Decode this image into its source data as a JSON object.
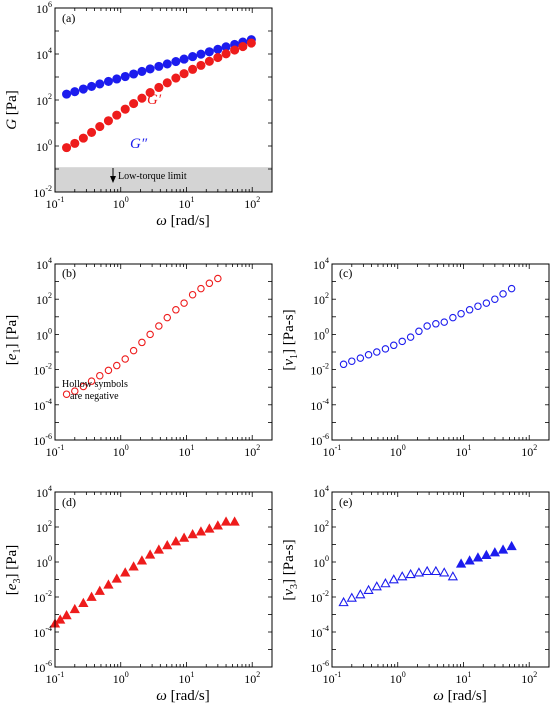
{
  "figure": {
    "panels": [
      {
        "id": "a",
        "label": "(a)",
        "ylabel_sym": "G",
        "ylabel_unit": " [Pa]",
        "xlabel_sym": "ω",
        "xlabel_unit": " [rad/s]"
      },
      {
        "id": "b",
        "label": "(b)",
        "ylabel_sym": "e",
        "ylabel_sub": "1",
        "ylabel_unit": " [Pa]",
        "annotation": [
          "Hollow symbols",
          "are negative"
        ]
      },
      {
        "id": "c",
        "label": "(c)",
        "ylabel_sym": "v",
        "ylabel_sub": "1",
        "ylabel_unit": " [Pa-s]"
      },
      {
        "id": "d",
        "label": "(d)",
        "ylabel_sym": "e",
        "ylabel_sub": "3",
        "ylabel_unit": " [Pa]",
        "xlabel_sym": "ω",
        "xlabel_unit": " [rad/s]"
      },
      {
        "id": "e",
        "label": "(e)",
        "ylabel_sym": "v",
        "ylabel_sub": "3",
        "ylabel_unit": " [Pa-s]",
        "xlabel_sym": "ω",
        "xlabel_unit": " [rad/s]"
      }
    ],
    "colors": {
      "red": "#ee1c1c",
      "blue": "#1c1cee",
      "shade": "#d4d4d4"
    }
  },
  "chart_data": [
    {
      "id": "a",
      "type": "scatter",
      "log_x": true,
      "log_y": true,
      "xlim": [
        0.1,
        200
      ],
      "ylim": [
        0.01,
        1000000
      ],
      "x_ticks": [
        {
          "e": -1
        },
        {
          "e": 0
        },
        {
          "e": 1
        },
        {
          "e": 2
        }
      ],
      "y_ticks": [
        {
          "e": -2
        },
        {
          "e": 0
        },
        {
          "e": 2
        },
        {
          "e": 4
        },
        {
          "e": 6
        }
      ],
      "shaded_band": {
        "from": 0.01,
        "to": 0.12,
        "label": "Low-torque limit"
      },
      "series": [
        {
          "name": "G″",
          "color": "#1c1cee",
          "marker": "circle",
          "filled": true,
          "x": [
            0.15,
            0.2,
            0.27,
            0.36,
            0.48,
            0.65,
            0.87,
            1.17,
            1.57,
            2.1,
            2.8,
            3.8,
            5.1,
            6.9,
            9.2,
            12.4,
            16.6,
            22.3,
            30,
            40,
            54,
            72,
            97
          ],
          "y": [
            180,
            230,
            300,
            390,
            500,
            640,
            820,
            1050,
            1350,
            1750,
            2250,
            2900,
            3700,
            4700,
            6000,
            7700,
            9800,
            12500,
            16000,
            20500,
            26000,
            33000,
            42000
          ]
        },
        {
          "name": "G′",
          "color": "#ee1c1c",
          "marker": "circle",
          "filled": true,
          "x": [
            0.15,
            0.2,
            0.27,
            0.36,
            0.48,
            0.65,
            0.87,
            1.17,
            1.57,
            2.1,
            2.8,
            3.8,
            5.1,
            6.9,
            9.2,
            12.4,
            16.6,
            22.3,
            30,
            40,
            54,
            72,
            97
          ],
          "y": [
            0.85,
            1.3,
            2.2,
            3.9,
            7,
            12.5,
            22,
            40,
            70,
            120,
            210,
            350,
            560,
            900,
            1400,
            2150,
            3200,
            4800,
            7000,
            10200,
            14800,
            21000,
            30000
          ]
        }
      ]
    },
    {
      "id": "b",
      "type": "scatter",
      "log_x": true,
      "log_y": true,
      "xlim": [
        0.1,
        200
      ],
      "ylim": [
        1e-06,
        10000
      ],
      "x_ticks": [
        {
          "e": -1
        },
        {
          "e": 0
        },
        {
          "e": 1
        },
        {
          "e": 2
        }
      ],
      "y_ticks": [
        {
          "e": -6
        },
        {
          "e": -4
        },
        {
          "e": -2
        },
        {
          "e": 0
        },
        {
          "e": 2
        },
        {
          "e": 4
        }
      ],
      "series": [
        {
          "color": "#ee1c1c",
          "marker": "circle",
          "filled": false,
          "x": [
            0.15,
            0.2,
            0.27,
            0.36,
            0.48,
            0.65,
            0.87,
            1.17,
            1.57,
            2.1,
            2.8,
            3.8,
            5.1,
            6.9,
            9.2,
            12.4,
            16.6,
            22.3,
            30
          ],
          "y": [
            0.0004,
            0.0006,
            0.0011,
            0.0022,
            0.0045,
            0.009,
            0.017,
            0.04,
            0.12,
            0.35,
            1.0,
            3.0,
            9,
            25,
            60,
            180,
            400,
            800,
            1500
          ]
        }
      ]
    },
    {
      "id": "c",
      "type": "scatter",
      "log_x": true,
      "log_y": true,
      "xlim": [
        0.1,
        200
      ],
      "ylim": [
        1e-06,
        10000
      ],
      "x_ticks": [
        {
          "e": -1
        },
        {
          "e": 0
        },
        {
          "e": 1
        },
        {
          "e": 2
        }
      ],
      "y_ticks": [
        {
          "e": -6
        },
        {
          "e": -4
        },
        {
          "e": -2
        },
        {
          "e": 0
        },
        {
          "e": 2
        },
        {
          "e": 4
        }
      ],
      "series": [
        {
          "color": "#1c1cee",
          "marker": "circle",
          "filled": false,
          "x": [
            0.15,
            0.2,
            0.27,
            0.36,
            0.48,
            0.65,
            0.87,
            1.17,
            1.57,
            2.1,
            2.8,
            3.8,
            5.1,
            6.9,
            9.2,
            12.4,
            16.6,
            22.3,
            30,
            40,
            54
          ],
          "y": [
            0.02,
            0.03,
            0.045,
            0.07,
            0.1,
            0.15,
            0.24,
            0.4,
            0.7,
            1.5,
            3,
            4,
            5,
            9,
            15,
            25,
            40,
            60,
            100,
            200,
            400
          ]
        }
      ]
    },
    {
      "id": "d",
      "type": "scatter",
      "log_x": true,
      "log_y": true,
      "xlim": [
        0.1,
        200
      ],
      "ylim": [
        1e-06,
        10000
      ],
      "x_ticks": [
        {
          "e": -1
        },
        {
          "e": 0
        },
        {
          "e": 1
        },
        {
          "e": 2
        }
      ],
      "y_ticks": [
        {
          "e": -6
        },
        {
          "e": -4
        },
        {
          "e": -2
        },
        {
          "e": 0
        },
        {
          "e": 2
        },
        {
          "e": 4
        }
      ],
      "series": [
        {
          "color": "#ee1c1c",
          "marker": "triangle",
          "filled": true,
          "x": [
            0.1,
            0.12,
            0.15,
            0.2,
            0.27,
            0.36,
            0.48,
            0.65,
            0.87,
            1.17,
            1.57,
            2.1,
            2.8,
            3.8,
            5.1,
            6.9,
            9.2,
            12.4,
            16.6,
            22.3,
            30,
            40,
            54
          ],
          "y": [
            0.0003,
            0.0005,
            0.0009,
            0.002,
            0.0045,
            0.01,
            0.022,
            0.05,
            0.11,
            0.25,
            0.55,
            1.2,
            2.6,
            5,
            9,
            15,
            24,
            38,
            55,
            80,
            120,
            200,
            200
          ]
        }
      ]
    },
    {
      "id": "e",
      "type": "scatter",
      "log_x": true,
      "log_y": true,
      "xlim": [
        0.1,
        200
      ],
      "ylim": [
        1e-06,
        10000
      ],
      "x_ticks": [
        {
          "e": -1
        },
        {
          "e": 0
        },
        {
          "e": 1
        },
        {
          "e": 2
        }
      ],
      "y_ticks": [
        {
          "e": -6
        },
        {
          "e": -4
        },
        {
          "e": -2
        },
        {
          "e": 0
        },
        {
          "e": 2
        },
        {
          "e": 4
        }
      ],
      "series": [
        {
          "color": "#1c1cee",
          "marker": "triangle",
          "filled": false,
          "x": [
            0.15,
            0.2,
            0.27,
            0.36,
            0.48,
            0.65,
            0.87,
            1.17,
            1.57,
            2.1,
            2.8,
            3.8,
            5.1,
            6.9
          ],
          "y": [
            0.005,
            0.009,
            0.014,
            0.025,
            0.04,
            0.06,
            0.1,
            0.15,
            0.2,
            0.25,
            0.3,
            0.3,
            0.25,
            0.15
          ]
        },
        {
          "color": "#1c1cee",
          "marker": "triangle",
          "filled": true,
          "x": [
            9.2,
            12.4,
            16.6,
            22.3,
            30,
            40,
            54
          ],
          "y": [
            0.8,
            1.2,
            1.8,
            2.5,
            3.5,
            5,
            8
          ]
        }
      ]
    }
  ]
}
